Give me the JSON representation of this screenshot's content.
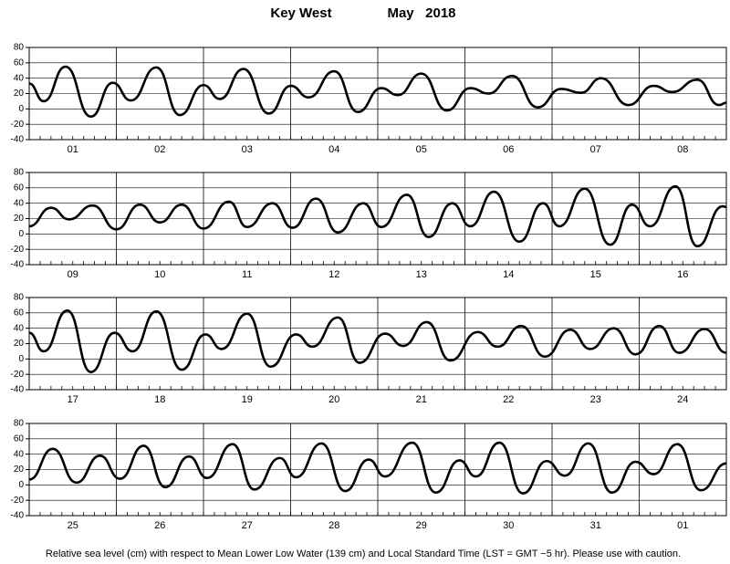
{
  "title": "Key West",
  "date": "May   2018",
  "note": "Relative sea level (cm) with respect to Mean Lower Low Water (139 cm) and Local Standard Time (LST = GMT −5 hr). Please use with caution.",
  "chart_data": [
    {
      "type": "line",
      "categories": [
        "01",
        "02",
        "03",
        "04",
        "05",
        "06",
        "07",
        "08"
      ],
      "xlim": [
        0,
        192
      ],
      "ylim": [
        -40,
        80
      ],
      "yticks": [
        -40,
        -20,
        0,
        20,
        40,
        60,
        80
      ],
      "color": "#000000",
      "x": [
        0,
        4,
        10,
        17,
        23,
        28,
        35,
        41.5,
        48,
        52.5,
        59,
        66,
        72,
        77,
        84,
        90.5,
        97,
        101.5,
        108,
        115,
        121.5,
        126.5,
        133,
        140,
        146.5,
        152,
        157.5,
        165,
        172,
        177,
        184,
        190,
        192
      ],
      "values": [
        33,
        10,
        55,
        -10,
        34,
        11,
        54,
        -8,
        31,
        13,
        52,
        -6,
        30,
        15,
        49,
        -4,
        27,
        18,
        46,
        -2,
        27,
        20,
        43,
        2,
        26,
        21,
        40,
        5,
        30,
        22,
        38,
        5,
        8
      ]
    },
    {
      "type": "line",
      "categories": [
        "09",
        "10",
        "11",
        "12",
        "13",
        "14",
        "15",
        "16"
      ],
      "xlim": [
        0,
        192
      ],
      "ylim": [
        -40,
        80
      ],
      "yticks": [
        -40,
        -20,
        0,
        20,
        40,
        60,
        80
      ],
      "color": "#000000",
      "x": [
        0,
        6,
        11,
        17.5,
        24,
        30.5,
        36,
        42,
        48,
        55,
        60,
        67,
        72.5,
        79,
        85,
        92,
        97,
        104,
        110,
        116.5,
        121.5,
        128,
        135,
        141.5,
        146,
        153,
        160,
        166,
        171,
        178,
        184,
        191,
        192
      ],
      "values": [
        10,
        34,
        19,
        37,
        6,
        38,
        15,
        38,
        7,
        42,
        9,
        40,
        8,
        46,
        2,
        40,
        9,
        51,
        -4,
        40,
        10,
        55,
        -10,
        40,
        10,
        59,
        -14,
        38,
        10,
        62,
        -16,
        36,
        35
      ]
    },
    {
      "type": "line",
      "categories": [
        "17",
        "18",
        "19",
        "20",
        "21",
        "22",
        "23",
        "24"
      ],
      "xlim": [
        0,
        192
      ],
      "ylim": [
        -40,
        80
      ],
      "yticks": [
        -40,
        -20,
        0,
        20,
        40,
        60,
        80
      ],
      "color": "#000000",
      "x": [
        0,
        4,
        10.5,
        17,
        23.5,
        28.5,
        35,
        42,
        48.5,
        53,
        60,
        66.5,
        73.5,
        78,
        85,
        91,
        98,
        103,
        109.5,
        116,
        123.5,
        129,
        135.5,
        142,
        149,
        154.5,
        161,
        167,
        173.5,
        179,
        186,
        192
      ],
      "values": [
        34,
        10,
        63,
        -17,
        34,
        10,
        62,
        -14,
        32,
        13,
        59,
        -10,
        32,
        16,
        54,
        -5,
        33,
        17,
        48,
        -2,
        35,
        16,
        43,
        3,
        38,
        13,
        40,
        6,
        43,
        8,
        39,
        8
      ]
    },
    {
      "type": "line",
      "categories": [
        "25",
        "26",
        "27",
        "28",
        "29",
        "30",
        "31",
        "01"
      ],
      "xlim": [
        0,
        192
      ],
      "ylim": [
        -40,
        80
      ],
      "yticks": [
        -40,
        -20,
        0,
        20,
        40,
        60,
        80
      ],
      "color": "#000000",
      "x": [
        0,
        6.5,
        13,
        19.5,
        25,
        31.5,
        37.5,
        44,
        49,
        56,
        62,
        69,
        73.5,
        80.5,
        87,
        93.5,
        98,
        105.5,
        112,
        118.5,
        123,
        129.5,
        136,
        142.5,
        147.5,
        154,
        160.5,
        167,
        172,
        178.5,
        185,
        192
      ],
      "values": [
        7,
        47,
        3,
        38,
        8,
        51,
        -3,
        37,
        9,
        53,
        -6,
        35,
        10,
        54,
        -8,
        33,
        11,
        55,
        -10,
        32,
        11,
        55,
        -11,
        31,
        12,
        54,
        -10,
        30,
        14,
        53,
        -7,
        28
      ]
    }
  ]
}
